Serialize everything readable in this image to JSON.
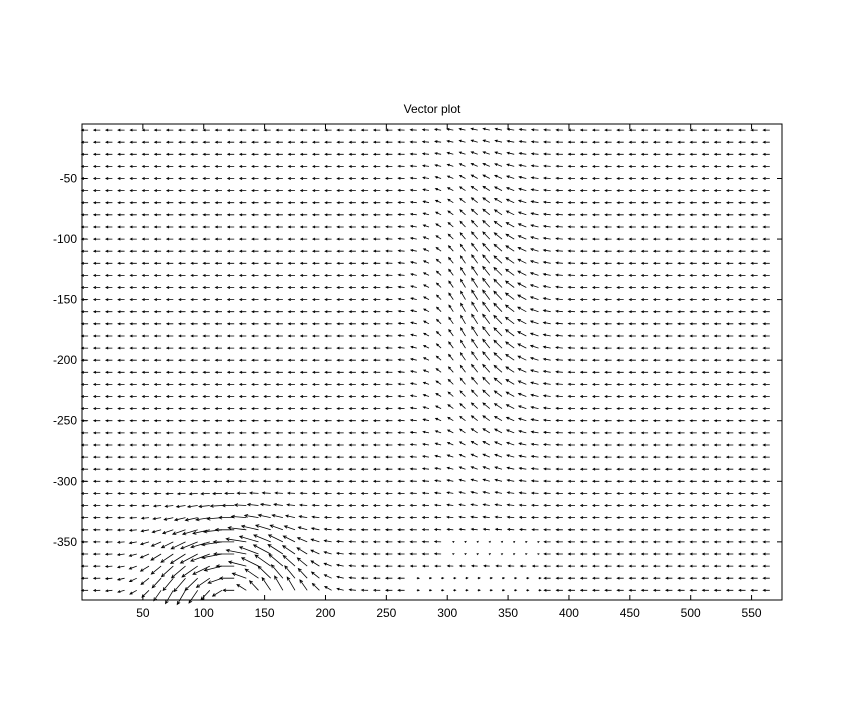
{
  "chart_data": {
    "type": "quiver",
    "title": "Vector plot",
    "xlabel": "",
    "ylabel": "",
    "xlim": [
      0,
      575
    ],
    "ylim": [
      -398,
      -5
    ],
    "xticks": [
      50,
      100,
      150,
      200,
      250,
      300,
      350,
      400,
      450,
      500,
      550
    ],
    "yticks": [
      -50,
      -100,
      -150,
      -200,
      -250,
      -300,
      -350
    ],
    "grid": false,
    "legend": "none",
    "color": "#000000",
    "field_region": {
      "x": [
        5,
        570
      ],
      "y": [
        -395,
        -10
      ]
    },
    "field_features": [
      {
        "kind": "background_flow",
        "direction": "left",
        "magnitude": 1.0
      },
      {
        "kind": "vortex",
        "center": [
          125,
          -395
        ],
        "radius": 75,
        "rotation": "ccw",
        "strength": 2.2
      },
      {
        "kind": "updraft",
        "center": [
          330,
          -160
        ],
        "width": 40,
        "depth": 110,
        "strength": 1.5
      },
      {
        "kind": "jet",
        "from": [
          275,
          -385
        ],
        "to": [
          380,
          -385
        ],
        "direction": "right",
        "strength": 2.0
      },
      {
        "kind": "jet",
        "from": [
          300,
          -355
        ],
        "to": [
          375,
          -355
        ],
        "direction": "right",
        "strength": 1.6
      }
    ]
  }
}
